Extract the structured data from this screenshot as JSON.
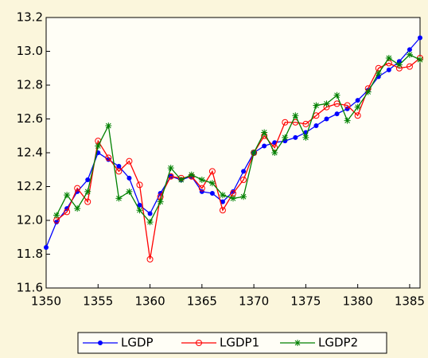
{
  "chart_data": {
    "type": "line",
    "x": [
      1350,
      1351,
      1352,
      1353,
      1354,
      1355,
      1356,
      1357,
      1358,
      1359,
      1360,
      1361,
      1362,
      1363,
      1364,
      1365,
      1366,
      1367,
      1368,
      1369,
      1370,
      1371,
      1372,
      1373,
      1374,
      1375,
      1376,
      1377,
      1378,
      1379,
      1380,
      1381,
      1382,
      1383,
      1384,
      1385,
      1386
    ],
    "series": [
      {
        "name": "LGDP",
        "color": "#0000ff",
        "marker": "dot",
        "values": [
          11.84,
          11.99,
          12.07,
          12.17,
          12.24,
          12.4,
          12.36,
          12.32,
          12.25,
          12.09,
          12.04,
          12.16,
          12.26,
          12.24,
          12.26,
          12.17,
          12.16,
          12.11,
          12.17,
          12.29,
          12.4,
          12.44,
          12.46,
          12.47,
          12.49,
          12.52,
          12.56,
          12.6,
          12.63,
          12.66,
          12.71,
          12.77,
          12.85,
          12.89,
          12.94,
          13.01,
          13.08
        ]
      },
      {
        "name": "LGDP1",
        "color": "#ff0000",
        "marker": "circle",
        "values": [
          null,
          12.0,
          12.05,
          12.19,
          12.11,
          12.47,
          12.37,
          12.29,
          12.35,
          12.21,
          11.77,
          12.14,
          12.26,
          12.25,
          12.26,
          12.19,
          12.29,
          12.06,
          12.16,
          12.24,
          12.4,
          12.5,
          12.43,
          12.58,
          12.58,
          12.57,
          12.62,
          12.67,
          12.69,
          12.68,
          12.62,
          12.78,
          12.9,
          12.93,
          12.9,
          12.91,
          12.96
        ]
      },
      {
        "name": "LGDP2",
        "color": "#008000",
        "marker": "star",
        "values": [
          null,
          12.03,
          12.15,
          12.07,
          12.17,
          12.44,
          12.56,
          12.13,
          12.17,
          12.06,
          11.99,
          12.11,
          12.31,
          12.24,
          12.27,
          12.24,
          12.22,
          12.15,
          12.13,
          12.14,
          12.4,
          12.52,
          12.4,
          12.49,
          12.62,
          12.49,
          12.68,
          12.69,
          12.74,
          12.59,
          12.67,
          12.76,
          12.87,
          12.96,
          12.92,
          12.98,
          12.95
        ]
      }
    ],
    "xlim": [
      1350,
      1386
    ],
    "xticks": [
      1350,
      1355,
      1360,
      1365,
      1370,
      1375,
      1380,
      1385
    ],
    "ylim": [
      11.6,
      13.2
    ],
    "yticks": [
      11.6,
      11.8,
      {
        "value": 12.0,
        "label": "12.0"
      },
      12.2,
      12.4,
      12.6,
      12.8,
      {
        "value": 13.0,
        "label": "13.0"
      },
      13.2
    ],
    "legend": "bottom"
  }
}
